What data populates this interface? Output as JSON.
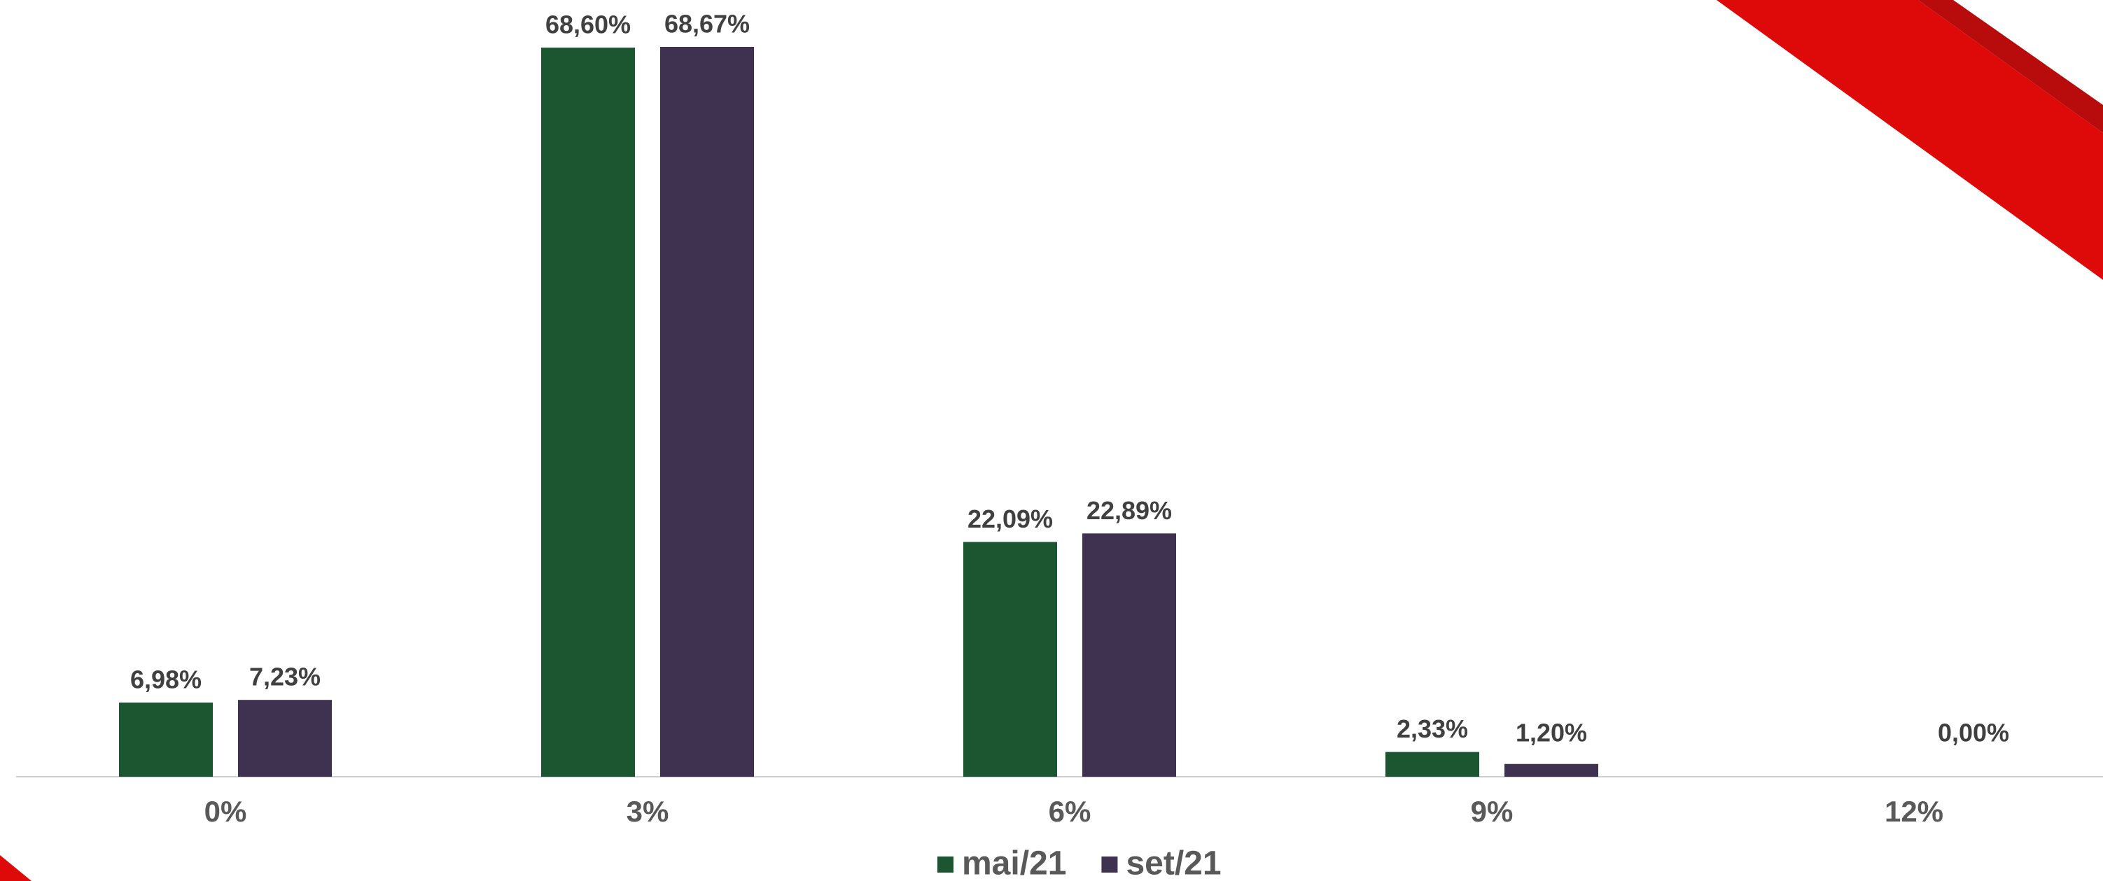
{
  "chart_data": {
    "type": "bar",
    "categories": [
      "0%",
      "3%",
      "6%",
      "9%",
      "12%"
    ],
    "series": [
      {
        "name": "mai/21",
        "color": "#1b5630",
        "values": [
          6.98,
          68.6,
          22.09,
          2.33,
          null
        ],
        "value_labels": [
          "6,98%",
          "68,60%",
          "22,09%",
          "2,33%",
          null
        ]
      },
      {
        "name": "set/21",
        "color": "#3f3150",
        "values": [
          7.23,
          68.67,
          22.89,
          1.2,
          0.0
        ],
        "value_labels": [
          "7,23%",
          "68,67%",
          "22,89%",
          "1,20%",
          "0,00%"
        ]
      }
    ],
    "legend": "bottom"
  }
}
